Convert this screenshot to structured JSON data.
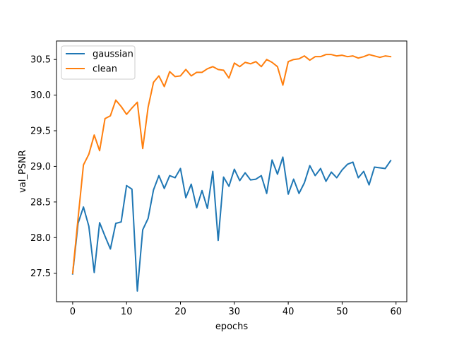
{
  "chart_data": {
    "type": "line",
    "title": "",
    "xlabel": "epochs",
    "ylabel": "val_PSNR",
    "xlim": [
      -3,
      62
    ],
    "ylim": [
      27.1,
      30.76
    ],
    "xticks": [
      0,
      10,
      20,
      30,
      40,
      50,
      60
    ],
    "yticks": [
      27.5,
      28.0,
      28.5,
      29.0,
      29.5,
      30.0,
      30.5
    ],
    "ytick_labels": [
      "27.5",
      "28.0",
      "28.5",
      "29.0",
      "29.5",
      "30.0",
      "30.5"
    ],
    "grid": false,
    "legend_position": "top-left",
    "x": [
      0,
      1,
      2,
      3,
      4,
      5,
      6,
      7,
      8,
      9,
      10,
      11,
      12,
      13,
      14,
      15,
      16,
      17,
      18,
      19,
      20,
      21,
      22,
      23,
      24,
      25,
      26,
      27,
      28,
      29,
      30,
      31,
      32,
      33,
      34,
      35,
      36,
      37,
      38,
      39,
      40,
      41,
      42,
      43,
      44,
      45,
      46,
      47,
      48,
      49,
      50,
      51,
      52,
      53,
      54,
      55,
      56,
      57,
      58,
      59
    ],
    "series": [
      {
        "name": "gaussian",
        "color": "#1f77b4",
        "values": [
          27.49,
          28.2,
          28.43,
          28.16,
          27.51,
          28.21,
          28.02,
          27.84,
          28.2,
          28.22,
          28.73,
          28.68,
          27.25,
          28.11,
          28.27,
          28.67,
          28.87,
          28.69,
          28.87,
          28.84,
          28.97,
          28.56,
          28.75,
          28.42,
          28.66,
          28.41,
          28.93,
          27.96,
          28.85,
          28.72,
          28.96,
          28.8,
          28.91,
          28.81,
          28.82,
          28.87,
          28.62,
          29.09,
          28.89,
          29.13,
          28.61,
          28.82,
          28.62,
          28.77,
          29.01,
          28.87,
          28.97,
          28.79,
          28.92,
          28.84,
          28.95,
          29.03,
          29.06,
          28.84,
          28.93,
          28.74,
          28.99,
          28.98,
          28.97,
          29.08
        ]
      },
      {
        "name": "clean",
        "color": "#ff7f0e",
        "values": [
          27.5,
          28.27,
          29.02,
          29.17,
          29.44,
          29.22,
          29.67,
          29.71,
          29.93,
          29.84,
          29.73,
          29.82,
          29.9,
          29.25,
          29.83,
          30.18,
          30.27,
          30.12,
          30.33,
          30.26,
          30.27,
          30.36,
          30.27,
          30.32,
          30.32,
          30.37,
          30.4,
          30.36,
          30.35,
          30.24,
          30.45,
          30.4,
          30.46,
          30.44,
          30.47,
          30.4,
          30.5,
          30.46,
          30.4,
          30.14,
          30.47,
          30.5,
          30.51,
          30.55,
          30.49,
          30.54,
          30.54,
          30.57,
          30.57,
          30.55,
          30.56,
          30.54,
          30.55,
          30.52,
          30.54,
          30.57,
          30.55,
          30.53,
          30.55,
          30.54
        ]
      }
    ]
  }
}
